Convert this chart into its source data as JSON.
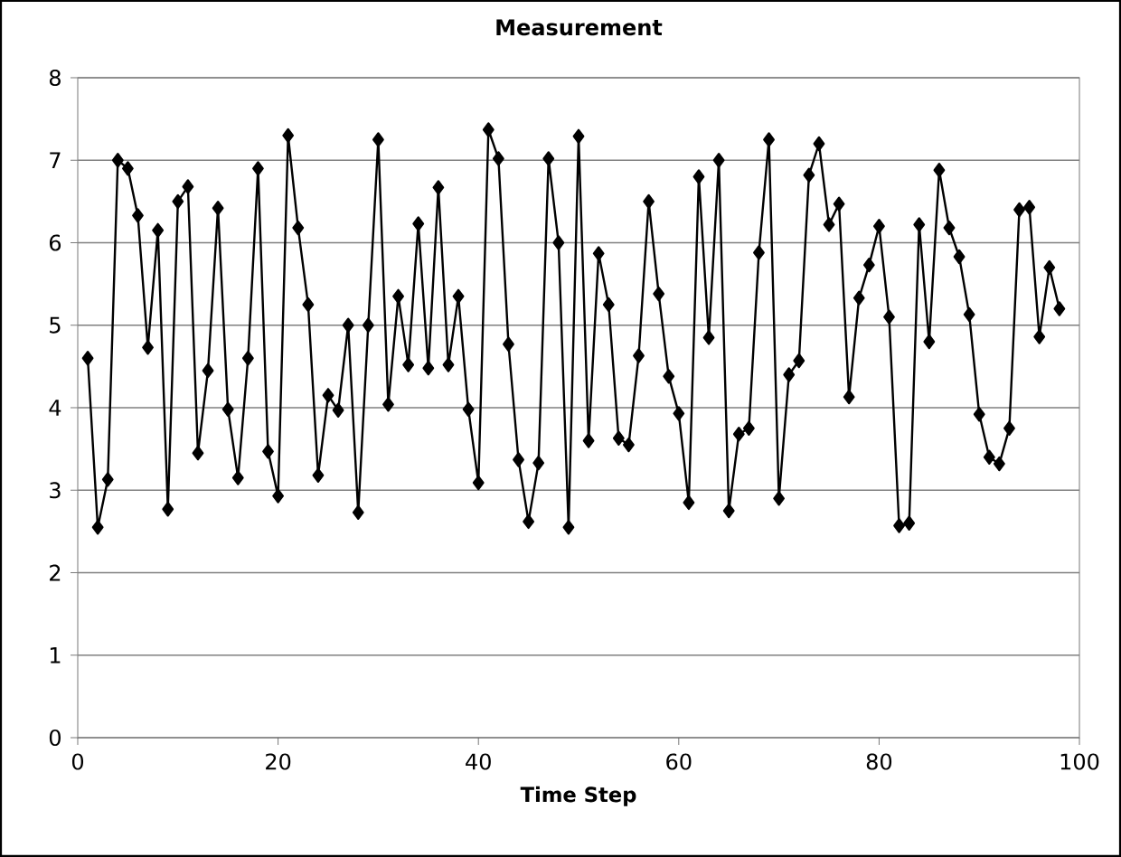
{
  "chart_data": {
    "type": "line",
    "title": "Measurement",
    "xlabel": "Time Step",
    "x": [
      1,
      2,
      3,
      4,
      5,
      6,
      7,
      8,
      9,
      10,
      11,
      12,
      13,
      14,
      15,
      16,
      17,
      18,
      19,
      20,
      21,
      22,
      23,
      24,
      25,
      26,
      27,
      28,
      29,
      30,
      31,
      32,
      33,
      34,
      35,
      36,
      37,
      38,
      39,
      40,
      41,
      42,
      43,
      44,
      45,
      46,
      47,
      48,
      49,
      50,
      51,
      52,
      53,
      54,
      55,
      56,
      57,
      58,
      59,
      60,
      61,
      62,
      63,
      64,
      65,
      66,
      67,
      68,
      69,
      70,
      71,
      72,
      73,
      74,
      75,
      76,
      77,
      78,
      79,
      80,
      81,
      82,
      83,
      84,
      85,
      86,
      87,
      88,
      89,
      90,
      91,
      92,
      93,
      94,
      95,
      96,
      97,
      98
    ],
    "series": [
      {
        "color": "#000000",
        "values": [
          4.6,
          2.55,
          3.13,
          7.0,
          6.9,
          6.33,
          4.73,
          6.15,
          2.77,
          6.5,
          6.68,
          3.45,
          4.45,
          6.42,
          3.98,
          3.15,
          4.6,
          6.9,
          3.47,
          2.93,
          7.3,
          6.18,
          5.25,
          3.18,
          4.15,
          3.97,
          5.0,
          2.73,
          5.0,
          7.25,
          4.04,
          5.35,
          4.52,
          6.23,
          4.48,
          6.67,
          4.52,
          5.35,
          3.98,
          3.09,
          7.37,
          7.02,
          4.77,
          3.37,
          2.62,
          3.33,
          7.02,
          6.0,
          2.55,
          7.29,
          3.6,
          5.87,
          5.25,
          3.63,
          3.55,
          4.63,
          6.5,
          5.38,
          4.38,
          3.93,
          2.85,
          6.8,
          4.85,
          7.0,
          2.75,
          3.68,
          3.75,
          5.88,
          7.25,
          2.9,
          4.4,
          4.57,
          6.82,
          7.2,
          6.22,
          6.47,
          4.13,
          5.33,
          5.73,
          6.2,
          5.1,
          2.57,
          2.6,
          6.22,
          4.8,
          6.88,
          6.18,
          5.83,
          5.13,
          3.92,
          3.4,
          3.32,
          3.75,
          6.4,
          6.43,
          4.86,
          5.7,
          5.2
        ]
      }
    ],
    "xlim": [
      0,
      100
    ],
    "xticks": [
      0,
      20,
      40,
      60,
      80,
      100
    ],
    "ylim": [
      0,
      8
    ],
    "yticks": [
      0,
      1,
      2,
      3,
      4,
      5,
      6,
      7,
      8
    ],
    "grid": "y",
    "marker": "diamond",
    "line_style": "solid"
  }
}
